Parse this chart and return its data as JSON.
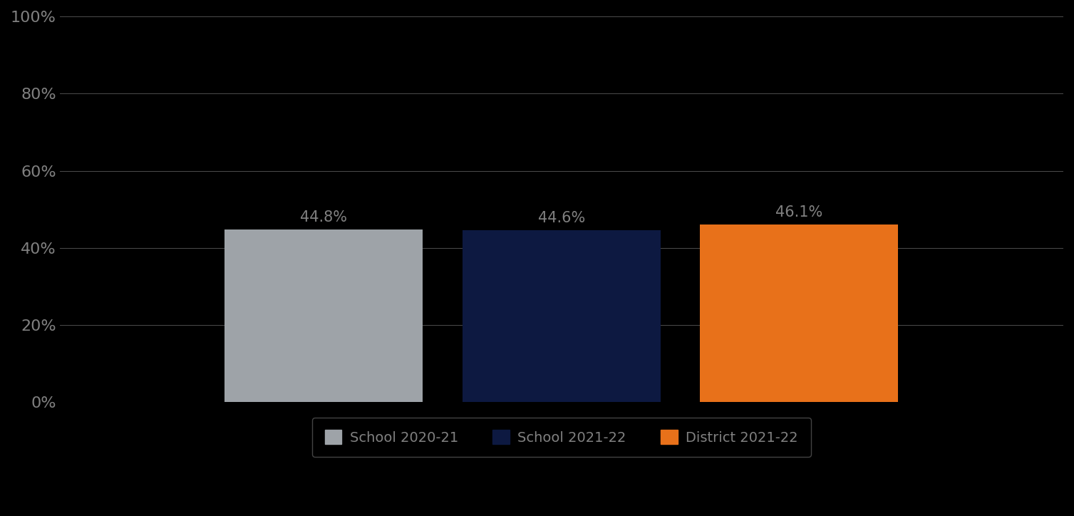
{
  "categories": [
    "School 2020-21",
    "School 2021-22",
    "District 2021-22"
  ],
  "values": [
    44.8,
    44.6,
    46.1
  ],
  "bar_colors": [
    "#9EA3A8",
    "#0D1941",
    "#E8711A"
  ],
  "labels": [
    "44.8%",
    "44.6%",
    "46.1%"
  ],
  "ylim": [
    0,
    100
  ],
  "yticks": [
    0,
    20,
    40,
    60,
    80,
    100
  ],
  "ytick_labels": [
    "0%",
    "20%",
    "40%",
    "60%",
    "80%",
    "100%"
  ],
  "background_color": "#000000",
  "plot_bg_color": "#000000",
  "grid_color": "#808080",
  "text_color": "#808080",
  "label_fontsize": 15,
  "tick_fontsize": 16,
  "legend_fontsize": 14,
  "bar_width": 0.15,
  "bar_positions": [
    0.32,
    0.5,
    0.68
  ],
  "xlim": [
    0.12,
    0.88
  ]
}
